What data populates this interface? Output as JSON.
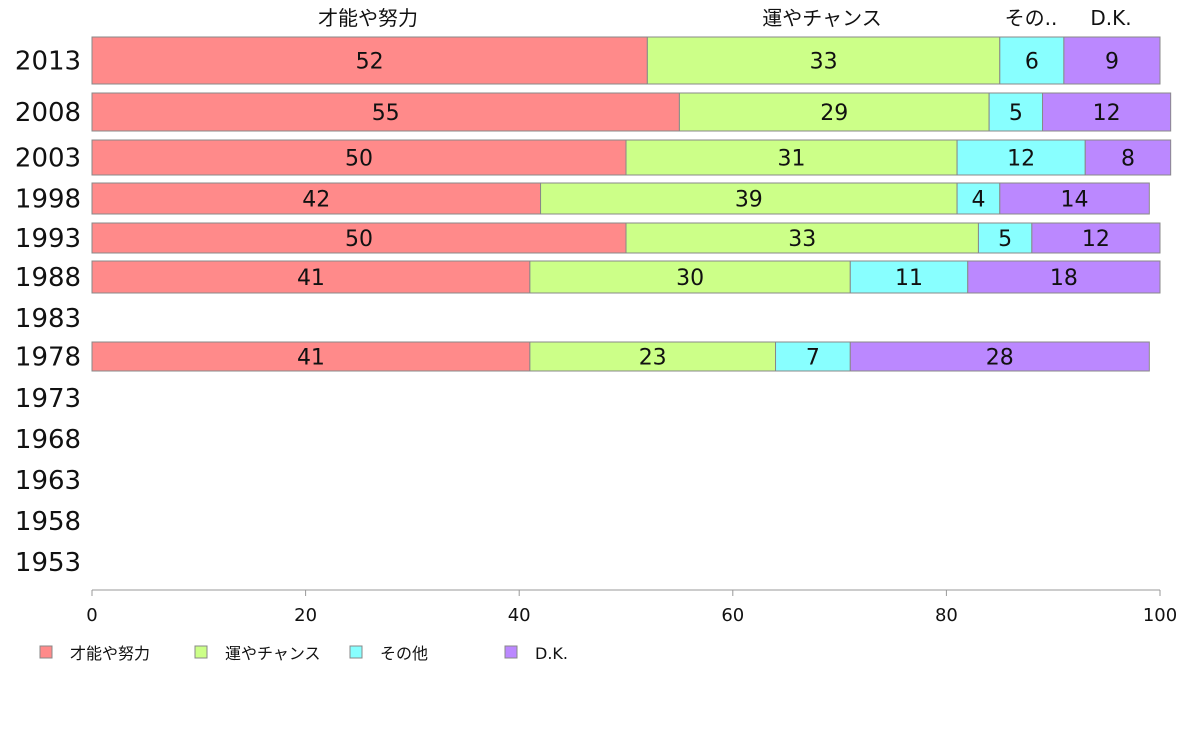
{
  "chart_data": {
    "type": "bar",
    "orientation": "horizontal",
    "stacked": true,
    "categories": [
      "2013",
      "2008",
      "2003",
      "1998",
      "1993",
      "1988",
      "1983",
      "1978",
      "1973",
      "1968",
      "1963",
      "1958",
      "1953"
    ],
    "series": [
      {
        "name": "才能や努力",
        "color": "#ff8a8a",
        "values": [
          52,
          55,
          50,
          42,
          50,
          41,
          null,
          41,
          null,
          null,
          null,
          null,
          null
        ]
      },
      {
        "name": "運やチャンス",
        "color": "#ccff88",
        "values": [
          33,
          29,
          31,
          39,
          33,
          30,
          null,
          23,
          null,
          null,
          null,
          null,
          null
        ]
      },
      {
        "name": "その他",
        "color": "#88ffff",
        "values": [
          6,
          5,
          12,
          4,
          5,
          11,
          null,
          7,
          null,
          null,
          null,
          null,
          null
        ]
      },
      {
        "name": "D.K.",
        "color": "#bb88ff",
        "values": [
          9,
          12,
          8,
          14,
          12,
          18,
          null,
          28,
          null,
          null,
          null,
          null,
          null
        ]
      }
    ],
    "top_labels": [
      "才能や努力",
      "運やチャンス",
      "その..",
      "D.K."
    ],
    "xlim": [
      0,
      100
    ],
    "xticks": [
      "0",
      "20",
      "40",
      "60",
      "80",
      "100"
    ],
    "grid": false,
    "legend_position": "bottom-left"
  }
}
